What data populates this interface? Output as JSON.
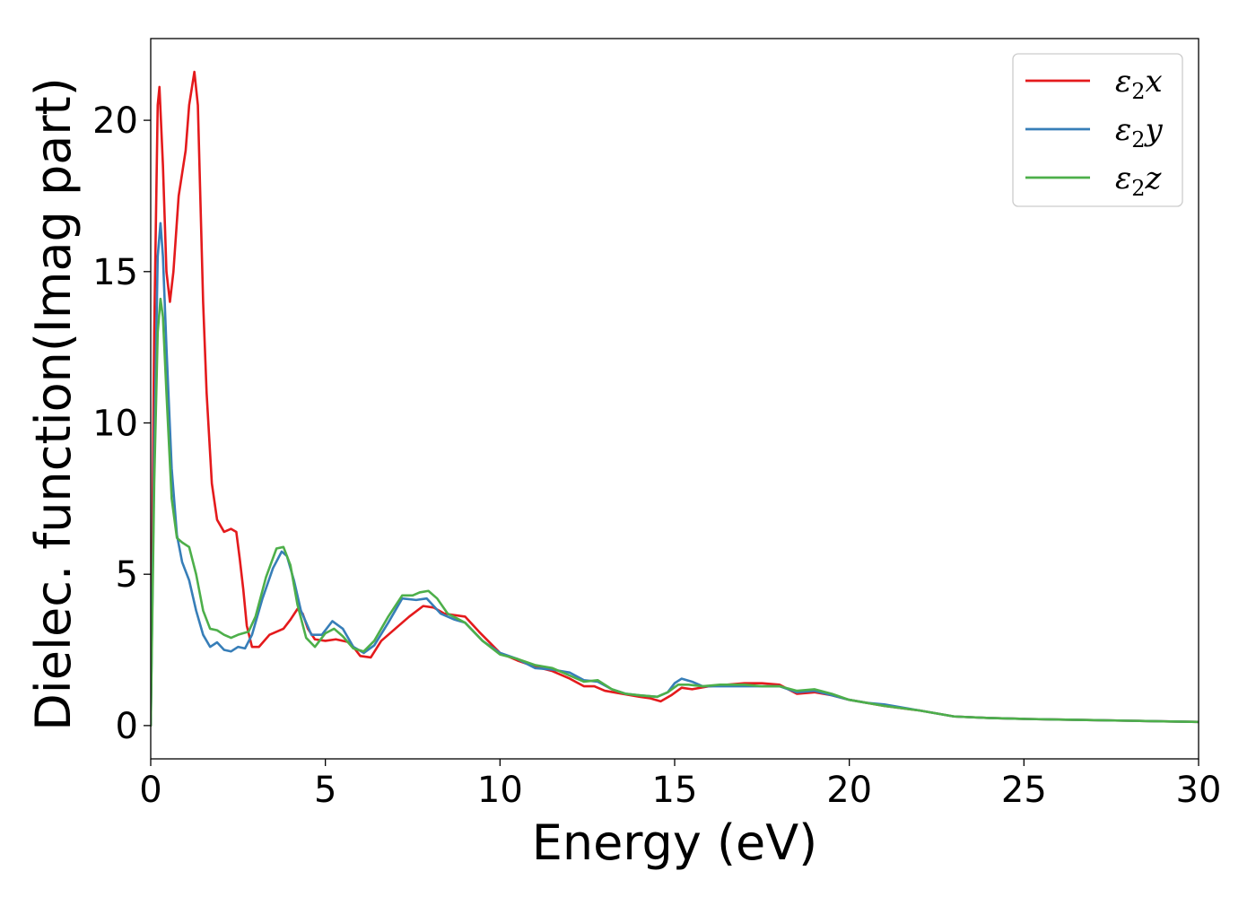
{
  "chart_data": {
    "type": "line",
    "xlabel": "Energy (eV)",
    "ylabel": "Dielec. function(Imag part)",
    "xlim": [
      0,
      30
    ],
    "ylim": [
      -1.1,
      22.7
    ],
    "xticks": [
      0,
      5,
      10,
      15,
      20,
      25,
      30
    ],
    "yticks": [
      0,
      5,
      10,
      15,
      20
    ],
    "grid": false,
    "legend_position": "top-right",
    "series": [
      {
        "name": "ε2x",
        "legend": {
          "base": "ε",
          "sub": "2",
          "var": "x"
        },
        "color": "#e41a1c",
        "points": [
          [
            0,
            0
          ],
          [
            0.1,
            13
          ],
          [
            0.2,
            20.5
          ],
          [
            0.25,
            21.1
          ],
          [
            0.35,
            18.5
          ],
          [
            0.45,
            15
          ],
          [
            0.55,
            14
          ],
          [
            0.65,
            15
          ],
          [
            0.8,
            17.5
          ],
          [
            1.0,
            19
          ],
          [
            1.1,
            20.5
          ],
          [
            1.25,
            21.6
          ],
          [
            1.35,
            20.5
          ],
          [
            1.5,
            14
          ],
          [
            1.6,
            11
          ],
          [
            1.75,
            8
          ],
          [
            1.9,
            6.8
          ],
          [
            2.1,
            6.4
          ],
          [
            2.3,
            6.5
          ],
          [
            2.45,
            6.4
          ],
          [
            2.55,
            5.5
          ],
          [
            2.65,
            4.5
          ],
          [
            2.75,
            3.3
          ],
          [
            2.9,
            2.6
          ],
          [
            3.1,
            2.6
          ],
          [
            3.4,
            3.0
          ],
          [
            3.8,
            3.2
          ],
          [
            4.0,
            3.5
          ],
          [
            4.2,
            3.85
          ],
          [
            4.35,
            3.7
          ],
          [
            4.5,
            3.2
          ],
          [
            4.7,
            2.85
          ],
          [
            5.0,
            2.8
          ],
          [
            5.3,
            2.85
          ],
          [
            5.7,
            2.75
          ],
          [
            6.0,
            2.3
          ],
          [
            6.3,
            2.25
          ],
          [
            6.6,
            2.8
          ],
          [
            7.0,
            3.2
          ],
          [
            7.4,
            3.6
          ],
          [
            7.8,
            3.95
          ],
          [
            8.1,
            3.9
          ],
          [
            8.4,
            3.7
          ],
          [
            8.7,
            3.65
          ],
          [
            9.0,
            3.6
          ],
          [
            9.4,
            3.1
          ],
          [
            10.0,
            2.4
          ],
          [
            10.5,
            2.15
          ],
          [
            11.0,
            1.95
          ],
          [
            11.5,
            1.8
          ],
          [
            12.0,
            1.55
          ],
          [
            12.4,
            1.3
          ],
          [
            12.7,
            1.3
          ],
          [
            13.0,
            1.15
          ],
          [
            13.5,
            1.05
          ],
          [
            14.0,
            0.95
          ],
          [
            14.3,
            0.9
          ],
          [
            14.6,
            0.8
          ],
          [
            14.9,
            1.0
          ],
          [
            15.2,
            1.25
          ],
          [
            15.5,
            1.2
          ],
          [
            16.0,
            1.3
          ],
          [
            16.5,
            1.35
          ],
          [
            17.0,
            1.4
          ],
          [
            17.5,
            1.4
          ],
          [
            18.0,
            1.35
          ],
          [
            18.5,
            1.05
          ],
          [
            19.0,
            1.1
          ],
          [
            19.5,
            1.0
          ],
          [
            20.0,
            0.85
          ],
          [
            21.0,
            0.65
          ],
          [
            22.0,
            0.5
          ],
          [
            23.0,
            0.3
          ],
          [
            24.0,
            0.25
          ],
          [
            25.0,
            0.22
          ],
          [
            26.0,
            0.2
          ],
          [
            27.0,
            0.18
          ],
          [
            28.0,
            0.16
          ],
          [
            29.0,
            0.14
          ],
          [
            30.0,
            0.12
          ]
        ]
      },
      {
        "name": "ε2y",
        "legend": {
          "base": "ε",
          "sub": "2",
          "var": "y"
        },
        "color": "#377eb8",
        "points": [
          [
            0,
            0
          ],
          [
            0.1,
            9
          ],
          [
            0.2,
            15.5
          ],
          [
            0.28,
            16.6
          ],
          [
            0.35,
            15.5
          ],
          [
            0.45,
            12.5
          ],
          [
            0.6,
            8.5
          ],
          [
            0.75,
            6.3
          ],
          [
            0.9,
            5.4
          ],
          [
            1.1,
            4.8
          ],
          [
            1.3,
            3.8
          ],
          [
            1.5,
            3.0
          ],
          [
            1.7,
            2.6
          ],
          [
            1.9,
            2.75
          ],
          [
            2.1,
            2.5
          ],
          [
            2.3,
            2.45
          ],
          [
            2.5,
            2.6
          ],
          [
            2.7,
            2.55
          ],
          [
            2.9,
            3.0
          ],
          [
            3.2,
            4.2
          ],
          [
            3.5,
            5.2
          ],
          [
            3.75,
            5.75
          ],
          [
            3.9,
            5.6
          ],
          [
            4.1,
            4.8
          ],
          [
            4.3,
            3.8
          ],
          [
            4.6,
            3.0
          ],
          [
            4.9,
            3.0
          ],
          [
            5.2,
            3.45
          ],
          [
            5.5,
            3.2
          ],
          [
            5.8,
            2.6
          ],
          [
            6.1,
            2.4
          ],
          [
            6.4,
            2.65
          ],
          [
            6.8,
            3.4
          ],
          [
            7.2,
            4.2
          ],
          [
            7.6,
            4.15
          ],
          [
            7.9,
            4.2
          ],
          [
            8.3,
            3.7
          ],
          [
            8.7,
            3.5
          ],
          [
            9.0,
            3.4
          ],
          [
            9.5,
            2.8
          ],
          [
            10.0,
            2.4
          ],
          [
            10.5,
            2.2
          ],
          [
            11.0,
            1.9
          ],
          [
            11.5,
            1.85
          ],
          [
            12.0,
            1.75
          ],
          [
            12.4,
            1.5
          ],
          [
            12.8,
            1.45
          ],
          [
            13.2,
            1.2
          ],
          [
            13.6,
            1.05
          ],
          [
            14.0,
            1.0
          ],
          [
            14.5,
            0.95
          ],
          [
            14.8,
            1.1
          ],
          [
            15.0,
            1.4
          ],
          [
            15.2,
            1.55
          ],
          [
            15.5,
            1.45
          ],
          [
            15.8,
            1.3
          ],
          [
            16.3,
            1.3
          ],
          [
            17.0,
            1.3
          ],
          [
            17.5,
            1.3
          ],
          [
            18.0,
            1.3
          ],
          [
            18.5,
            1.1
          ],
          [
            19.0,
            1.15
          ],
          [
            19.5,
            1.0
          ],
          [
            20.0,
            0.85
          ],
          [
            20.5,
            0.75
          ],
          [
            21.0,
            0.7
          ],
          [
            22.0,
            0.5
          ],
          [
            23.0,
            0.3
          ],
          [
            24.0,
            0.25
          ],
          [
            25.0,
            0.22
          ],
          [
            26.0,
            0.2
          ],
          [
            27.0,
            0.18
          ],
          [
            28.0,
            0.16
          ],
          [
            29.0,
            0.14
          ],
          [
            30.0,
            0.12
          ]
        ]
      },
      {
        "name": "ε2z",
        "legend": {
          "base": "ε",
          "sub": "2",
          "var": "z"
        },
        "color": "#4daf4a",
        "points": [
          [
            0,
            0
          ],
          [
            0.1,
            8
          ],
          [
            0.2,
            13
          ],
          [
            0.28,
            14.1
          ],
          [
            0.35,
            13.5
          ],
          [
            0.45,
            11
          ],
          [
            0.6,
            7.5
          ],
          [
            0.75,
            6.2
          ],
          [
            0.9,
            6.05
          ],
          [
            1.1,
            5.9
          ],
          [
            1.3,
            5.0
          ],
          [
            1.5,
            3.8
          ],
          [
            1.7,
            3.2
          ],
          [
            1.9,
            3.15
          ],
          [
            2.1,
            3.0
          ],
          [
            2.3,
            2.9
          ],
          [
            2.5,
            3.0
          ],
          [
            2.8,
            3.1
          ],
          [
            3.0,
            3.6
          ],
          [
            3.3,
            4.9
          ],
          [
            3.6,
            5.85
          ],
          [
            3.8,
            5.9
          ],
          [
            4.0,
            5.3
          ],
          [
            4.2,
            4.0
          ],
          [
            4.45,
            2.9
          ],
          [
            4.7,
            2.6
          ],
          [
            5.0,
            3.05
          ],
          [
            5.25,
            3.2
          ],
          [
            5.5,
            2.95
          ],
          [
            5.8,
            2.55
          ],
          [
            6.1,
            2.45
          ],
          [
            6.4,
            2.8
          ],
          [
            6.8,
            3.6
          ],
          [
            7.2,
            4.3
          ],
          [
            7.5,
            4.3
          ],
          [
            7.7,
            4.4
          ],
          [
            7.95,
            4.45
          ],
          [
            8.2,
            4.2
          ],
          [
            8.5,
            3.7
          ],
          [
            9.0,
            3.4
          ],
          [
            9.5,
            2.8
          ],
          [
            10.0,
            2.35
          ],
          [
            10.5,
            2.2
          ],
          [
            11.0,
            2.0
          ],
          [
            11.5,
            1.9
          ],
          [
            12.0,
            1.65
          ],
          [
            12.4,
            1.45
          ],
          [
            12.8,
            1.5
          ],
          [
            13.2,
            1.2
          ],
          [
            13.6,
            1.05
          ],
          [
            14.0,
            1.0
          ],
          [
            14.5,
            0.95
          ],
          [
            14.8,
            1.1
          ],
          [
            15.1,
            1.35
          ],
          [
            15.4,
            1.35
          ],
          [
            15.8,
            1.3
          ],
          [
            16.3,
            1.35
          ],
          [
            17.0,
            1.35
          ],
          [
            17.5,
            1.3
          ],
          [
            18.0,
            1.3
          ],
          [
            18.5,
            1.15
          ],
          [
            19.0,
            1.2
          ],
          [
            19.5,
            1.05
          ],
          [
            20.0,
            0.85
          ],
          [
            21.0,
            0.65
          ],
          [
            22.0,
            0.5
          ],
          [
            23.0,
            0.3
          ],
          [
            24.0,
            0.25
          ],
          [
            25.0,
            0.22
          ],
          [
            26.0,
            0.2
          ],
          [
            27.0,
            0.18
          ],
          [
            28.0,
            0.16
          ],
          [
            29.0,
            0.14
          ],
          [
            30.0,
            0.12
          ]
        ]
      }
    ]
  }
}
